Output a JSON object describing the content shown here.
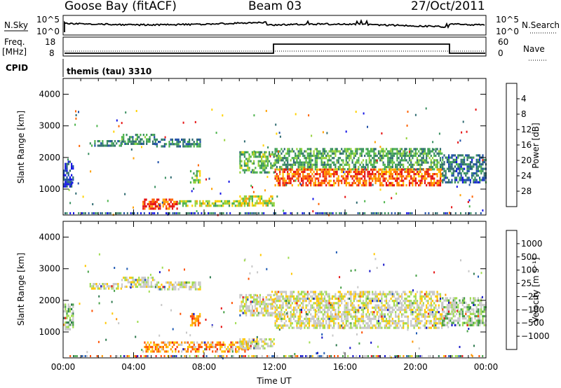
{
  "header": {
    "station": "Goose Bay (fitACF)",
    "beam": "Beam 03",
    "date": "27/Oct/2011"
  },
  "top_panels": {
    "nsky_label": "N.Sky",
    "nsearch_label": "N.Search",
    "noise_ticks": [
      "10^5",
      "10^0"
    ],
    "freq_label": "Freq.",
    "freq_unit": "[MHz]",
    "freq_ticks": [
      "18",
      "8"
    ],
    "nave_label": "Nave",
    "nave_ticks": [
      "60",
      "0"
    ],
    "cpid_label": "CPID",
    "cpid_value": "themis (tau) 3310"
  },
  "chart_data": [
    {
      "type": "heatmap",
      "name": "power",
      "ylabel": "Slant Range [km]",
      "ylim": [
        180,
        4500
      ],
      "yticks": [
        1000,
        2000,
        3000,
        4000
      ],
      "xlim": [
        0,
        24
      ],
      "colorbar": {
        "label": "Power [dB]",
        "ticks": [
          "4",
          "8",
          "12",
          "16",
          "20",
          "24",
          "28"
        ],
        "colors": [
          "#1414e6",
          "#1e4ea6",
          "#2e6a70",
          "#3a9060",
          "#4cb44c",
          "#96d23c",
          "#ffd200",
          "#ffa000",
          "#ff6400",
          "#e61414"
        ]
      },
      "echo_regions": [
        {
          "t": [
            1.5,
            3.3
          ],
          "r": [
            2400,
            2550
          ],
          "level": 0.3
        },
        {
          "t": [
            3.3,
            5.2
          ],
          "r": [
            2450,
            2750
          ],
          "level": 0.35
        },
        {
          "t": [
            5.2,
            7.8
          ],
          "r": [
            2350,
            2600
          ],
          "level": 0.3
        },
        {
          "t": [
            0.0,
            0.6
          ],
          "r": [
            1100,
            1900
          ],
          "level": 0.1
        },
        {
          "t": [
            7.2,
            7.8
          ],
          "r": [
            1200,
            1600
          ],
          "level": 0.5
        },
        {
          "t": [
            4.5,
            6.5
          ],
          "r": [
            400,
            700
          ],
          "level": 0.9
        },
        {
          "t": [
            6.5,
            10.5
          ],
          "r": [
            450,
            650
          ],
          "level": 0.55
        },
        {
          "t": [
            10.0,
            12.0
          ],
          "r": [
            500,
            800
          ],
          "level": 0.6
        },
        {
          "t": [
            10.0,
            12.0
          ],
          "r": [
            1500,
            2200
          ],
          "level": 0.45
        },
        {
          "t": [
            12.0,
            21.5
          ],
          "r": [
            1600,
            2300
          ],
          "level": 0.4
        },
        {
          "t": [
            12.0,
            21.5
          ],
          "r": [
            1150,
            1650
          ],
          "level": 0.85
        },
        {
          "t": [
            21.5,
            24.0
          ],
          "r": [
            1200,
            2100
          ],
          "level": 0.25
        }
      ]
    },
    {
      "type": "heatmap",
      "name": "velocity",
      "ylabel": "Slant Range [km]",
      "ylim": [
        180,
        4500
      ],
      "yticks": [
        1000,
        2000,
        3000,
        4000
      ],
      "xlim": [
        0,
        24
      ],
      "xticks": [
        "00:00",
        "04:00",
        "08:00",
        "12:00",
        "16:00",
        "20:00",
        "00:00"
      ],
      "xlabel": "Time UT",
      "colorbar": {
        "label": "Velocity [m s⁻¹]",
        "ticks": [
          "1000",
          "500",
          "100",
          "25",
          "−25",
          "−100",
          "−500",
          "−1000"
        ],
        "colors": [
          "#1414c8",
          "#1e5ab4",
          "#2e7a4e",
          "#46a046",
          "#a0dc50",
          "#c8c8c8",
          "#c8c8c8",
          "#ffc800",
          "#ff9600",
          "#ff5000",
          "#e61414"
        ]
      },
      "echo_regions": [
        {
          "t": [
            1.5,
            3.3
          ],
          "r": [
            2400,
            2550
          ],
          "level": 0.55
        },
        {
          "t": [
            3.3,
            5.2
          ],
          "r": [
            2450,
            2750
          ],
          "level": 0.55
        },
        {
          "t": [
            5.2,
            7.8
          ],
          "r": [
            2350,
            2600
          ],
          "level": 0.55
        },
        {
          "t": [
            0.0,
            0.6
          ],
          "r": [
            1100,
            1900
          ],
          "level": 0.4
        },
        {
          "t": [
            7.2,
            7.8
          ],
          "r": [
            1200,
            1600
          ],
          "level": 0.85
        },
        {
          "t": [
            4.5,
            10.5
          ],
          "r": [
            400,
            700
          ],
          "level": 0.75
        },
        {
          "t": [
            10.0,
            12.0
          ],
          "r": [
            500,
            800
          ],
          "level": 0.55
        },
        {
          "t": [
            10.0,
            12.0
          ],
          "r": [
            1500,
            2200
          ],
          "level": 0.55
        },
        {
          "t": [
            12.0,
            21.5
          ],
          "r": [
            1150,
            2300
          ],
          "level": 0.55
        },
        {
          "t": [
            21.5,
            24.0
          ],
          "r": [
            1200,
            2100
          ],
          "level": 0.45
        }
      ]
    }
  ]
}
